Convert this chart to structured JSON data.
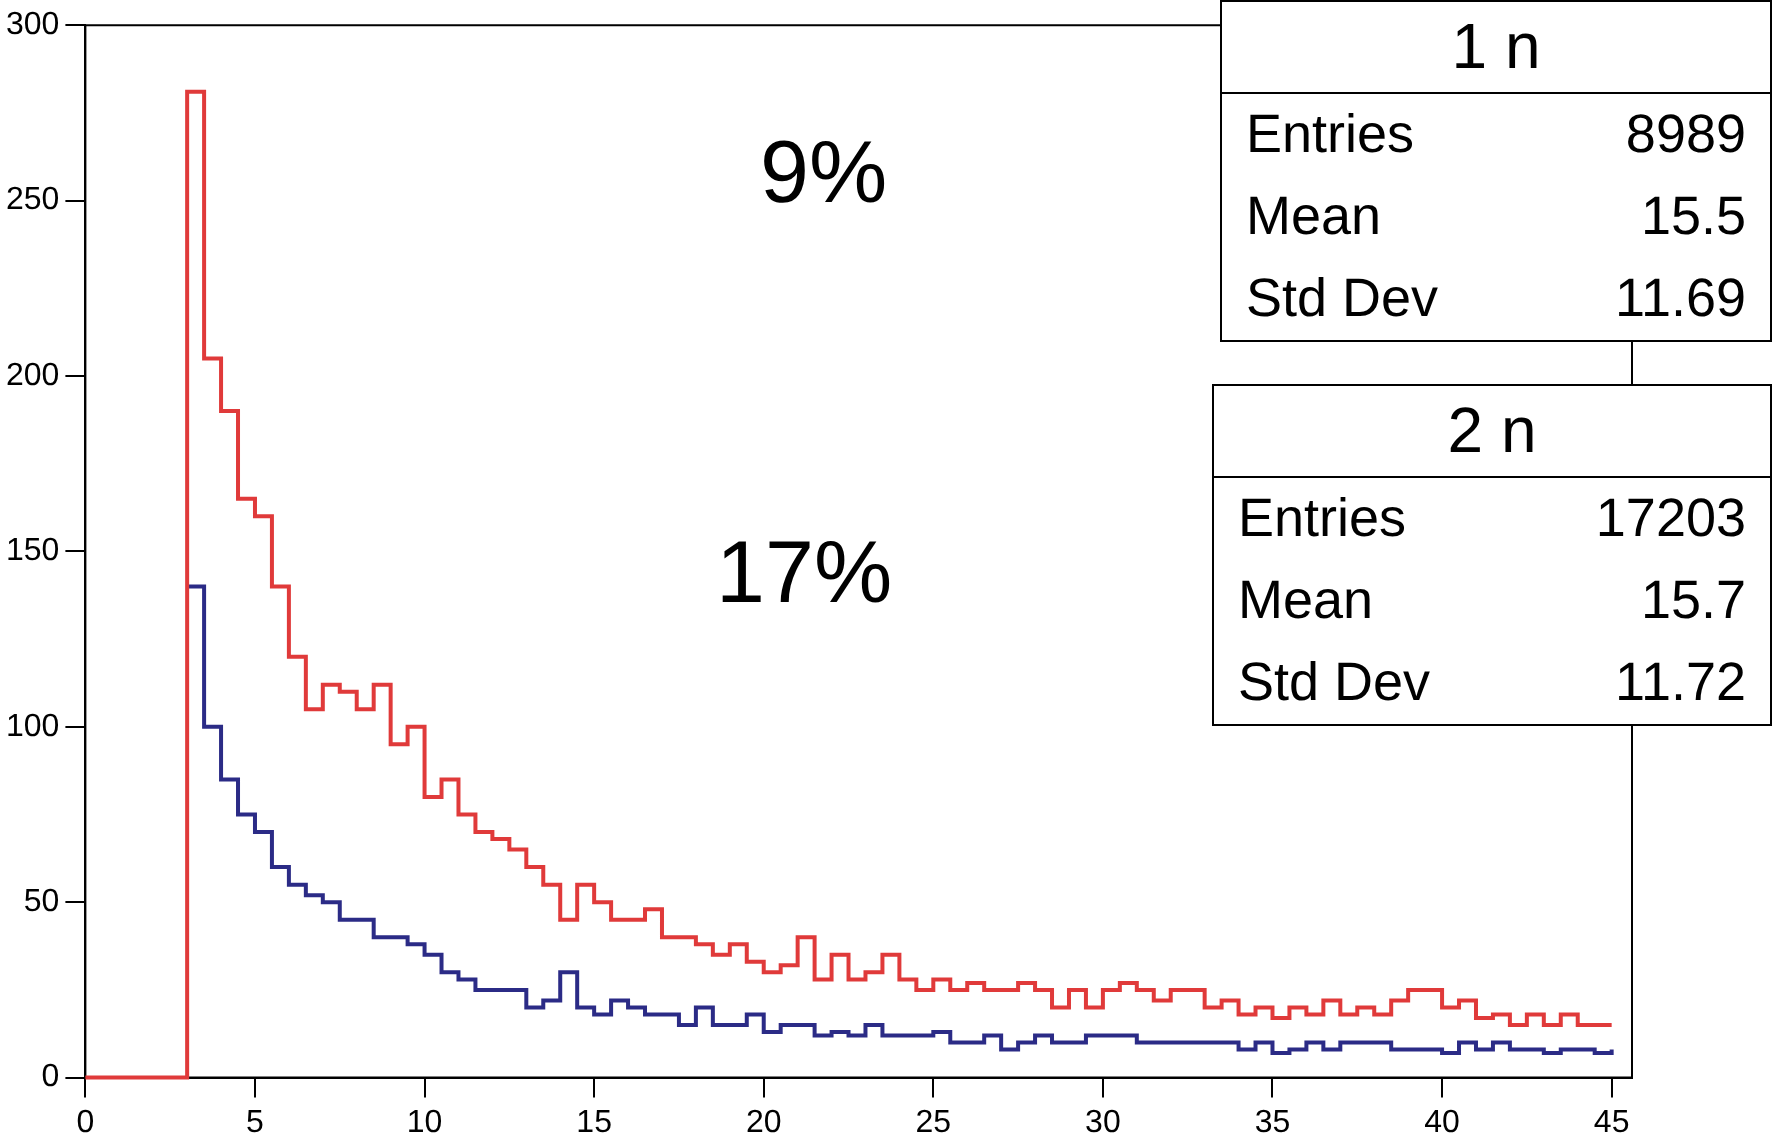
{
  "chart_data": {
    "type": "step",
    "xlim": [
      0,
      45.6
    ],
    "xticks": [
      0,
      5,
      10,
      15,
      20,
      25,
      30,
      35,
      40,
      45
    ],
    "ylim": [
      0,
      300
    ],
    "yticks": [
      0,
      50,
      100,
      150,
      200,
      250,
      300
    ],
    "grid": false,
    "legend": false,
    "annotations": [
      "9%",
      "17%",
      "1 n",
      "Entries",
      "8989",
      "Mean",
      "15.5",
      "Std Dev",
      "11.69",
      "2 n",
      "Entries",
      "17203",
      "Mean",
      "15.7",
      "Std Dev",
      "11.72"
    ],
    "series": [
      {
        "color": "#e03a3a",
        "x": [
          0,
          3,
          3.5,
          4,
          4.5,
          5,
          5.5,
          6,
          6.5,
          7,
          7.5,
          8,
          8.5,
          9,
          9.5,
          10,
          10.5,
          11,
          11.5,
          12,
          12.5,
          13,
          13.5,
          14,
          14.5,
          15,
          15.5,
          16,
          16.5,
          17,
          17.5,
          18,
          18.5,
          19,
          19.5,
          20,
          20.5,
          21,
          21.5,
          22,
          22.5,
          23,
          23.5,
          24,
          24.5,
          25,
          25.5,
          26,
          26.5,
          27,
          27.5,
          28,
          28.5,
          29,
          29.5,
          30,
          30.5,
          31,
          31.5,
          32,
          32.5,
          33,
          33.5,
          34,
          34.5,
          35,
          35.5,
          36,
          36.5,
          37,
          37.5,
          38,
          38.5,
          39,
          39.5,
          40,
          40.5,
          41,
          41.5,
          42,
          42.5,
          43,
          43.5,
          44,
          44.5,
          45
        ],
        "values": [
          0,
          281,
          205,
          190,
          165,
          160,
          140,
          120,
          105,
          112,
          110,
          105,
          112,
          95,
          100,
          80,
          85,
          75,
          70,
          68,
          65,
          60,
          55,
          45,
          55,
          50,
          45,
          45,
          48,
          40,
          40,
          38,
          35,
          38,
          33,
          30,
          32,
          40,
          28,
          35,
          28,
          30,
          35,
          28,
          25,
          28,
          25,
          27,
          25,
          25,
          27,
          25,
          20,
          25,
          20,
          25,
          27,
          25,
          22,
          25,
          25,
          20,
          22,
          18,
          20,
          17,
          20,
          18,
          22,
          18,
          20,
          18,
          22,
          25,
          25,
          20,
          22,
          17,
          18,
          15,
          18,
          15,
          18,
          15,
          15,
          15
        ]
      },
      {
        "color": "#2b2b86",
        "x": [
          3,
          3.5,
          4,
          4.5,
          5,
          5.5,
          6,
          6.5,
          7,
          7.5,
          8,
          8.5,
          9,
          9.5,
          10,
          10.5,
          11,
          11.5,
          12,
          12.5,
          13,
          13.5,
          14,
          14.5,
          15,
          15.5,
          16,
          16.5,
          17,
          17.5,
          18,
          18.5,
          19,
          19.5,
          20,
          20.5,
          21,
          21.5,
          22,
          22.5,
          23,
          23.5,
          24,
          24.5,
          25,
          25.5,
          26,
          26.5,
          27,
          27.5,
          28,
          28.5,
          29,
          29.5,
          30,
          30.5,
          31,
          31.5,
          32,
          32.5,
          33,
          33.5,
          34,
          34.5,
          35,
          35.5,
          36,
          36.5,
          37,
          37.5,
          38,
          38.5,
          39,
          39.5,
          40,
          40.5,
          41,
          41.5,
          42,
          42.5,
          43,
          43.5,
          44,
          44.5,
          45
        ],
        "values": [
          140,
          100,
          85,
          75,
          70,
          60,
          55,
          52,
          50,
          45,
          45,
          40,
          40,
          38,
          35,
          30,
          28,
          25,
          25,
          25,
          20,
          22,
          30,
          20,
          18,
          22,
          20,
          18,
          18,
          15,
          20,
          15,
          15,
          18,
          13,
          15,
          15,
          12,
          13,
          12,
          15,
          12,
          12,
          12,
          13,
          10,
          10,
          12,
          8,
          10,
          12,
          10,
          10,
          12,
          12,
          12,
          10,
          10,
          10,
          10,
          10,
          10,
          8,
          10,
          7,
          8,
          10,
          8,
          10,
          10,
          10,
          8,
          8,
          8,
          7,
          10,
          8,
          10,
          8,
          8,
          7,
          8,
          8,
          7,
          8
        ]
      }
    ]
  }
}
